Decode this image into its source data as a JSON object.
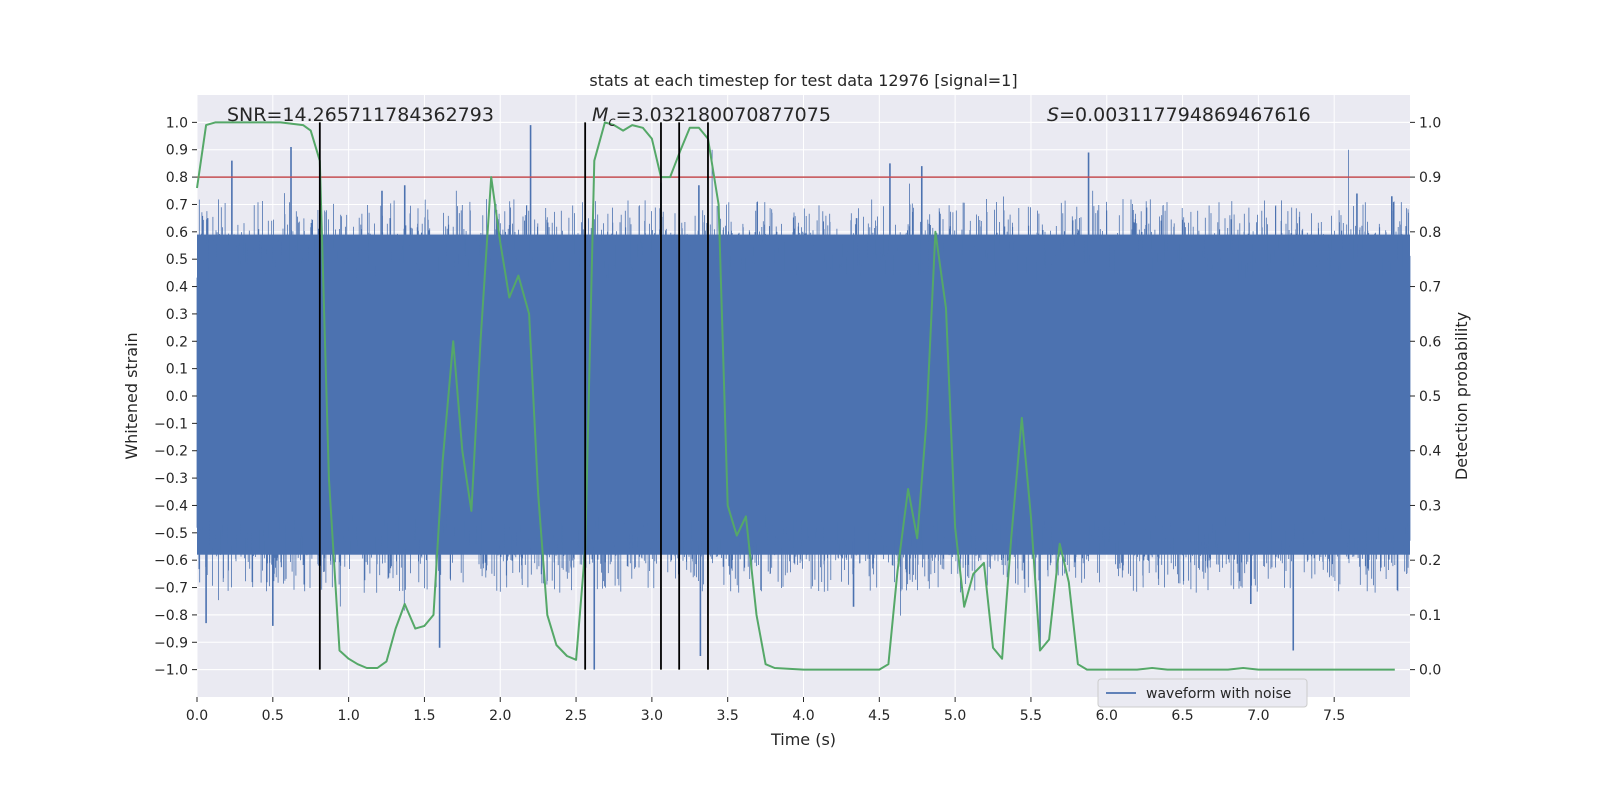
{
  "chart_data": {
    "type": "line",
    "title": "stats at each timestep for test data 12976 [signal=1]",
    "xlabel": "Time (s)",
    "ylabel_left": "Whitened strain",
    "ylabel_right": "Detection probability",
    "xlim": [
      0,
      8
    ],
    "ylim_left": [
      -1.1,
      1.1
    ],
    "ylim_right": [
      -0.05,
      1.05
    ],
    "x_ticks": [
      "0.0",
      "0.5",
      "1.0",
      "1.5",
      "2.0",
      "2.5",
      "3.0",
      "3.5",
      "4.0",
      "4.5",
      "5.0",
      "5.5",
      "6.0",
      "6.5",
      "7.0",
      "7.5"
    ],
    "x_tick_values": [
      0,
      0.5,
      1,
      1.5,
      2,
      2.5,
      3,
      3.5,
      4,
      4.5,
      5,
      5.5,
      6,
      6.5,
      7,
      7.5
    ],
    "y_left_ticks": [
      "1.0",
      "0.9",
      "0.8",
      "0.7",
      "0.6",
      "0.5",
      "0.4",
      "0.3",
      "0.2",
      "0.1",
      "0.0",
      "−0.1",
      "−0.2",
      "−0.3",
      "−0.4",
      "−0.5",
      "−0.6",
      "−0.7",
      "−0.8",
      "−0.9",
      "−1.0"
    ],
    "y_left_tick_values": [
      1,
      0.9,
      0.8,
      0.7,
      0.6,
      0.5,
      0.4,
      0.3,
      0.2,
      0.1,
      0,
      -0.1,
      -0.2,
      -0.3,
      -0.4,
      -0.5,
      -0.6,
      -0.7,
      -0.8,
      -0.9,
      -1
    ],
    "y_right_ticks": [
      "1.0",
      "0.9",
      "0.8",
      "0.7",
      "0.6",
      "0.5",
      "0.4",
      "0.3",
      "0.2",
      "0.1",
      "0.0"
    ],
    "y_right_tick_values": [
      1,
      0.9,
      0.8,
      0.7,
      0.6,
      0.5,
      0.4,
      0.3,
      0.2,
      0.1,
      0
    ],
    "annotations": {
      "snr": "SNR=14.265711784362793",
      "mc_symbol": "M",
      "mc_subscript": "c",
      "mc_value": "=3.032180070877075",
      "s_symbol": "S",
      "s_value": "=0.003117794869467616"
    },
    "legend": {
      "label": "waveform with noise",
      "location": "lower right"
    },
    "threshold": {
      "value": 0.9,
      "axis": "right",
      "color": "#c44e52"
    },
    "vertical_lines": [
      0.81,
      2.56,
      3.06,
      3.18,
      3.37
    ],
    "vertical_line_range_left": [
      -1,
      1
    ],
    "noise_series": {
      "name": "waveform with noise",
      "color": "#4c72b0",
      "envelope": [
        0.58,
        0.59
      ],
      "peaks": [
        {
          "x": 0.07,
          "y": 0.65
        },
        {
          "x": 0.23,
          "y": 0.86
        },
        {
          "x": 0.62,
          "y": 0.91
        },
        {
          "x": 1.22,
          "y": 0.75
        },
        {
          "x": 1.37,
          "y": 0.77
        },
        {
          "x": 2.2,
          "y": 0.99
        },
        {
          "x": 3.06,
          "y": 0.78
        },
        {
          "x": 3.31,
          "y": 0.77
        },
        {
          "x": 4.35,
          "y": 0.65
        },
        {
          "x": 4.57,
          "y": 0.85
        },
        {
          "x": 4.78,
          "y": 0.84
        },
        {
          "x": 5.88,
          "y": 0.89
        },
        {
          "x": 7.65,
          "y": 0.74
        },
        {
          "x": 7.88,
          "y": 0.73
        },
        {
          "x": 0.06,
          "y": -0.83
        },
        {
          "x": 0.5,
          "y": -0.84
        },
        {
          "x": 1.6,
          "y": -0.92
        },
        {
          "x": 2.62,
          "y": -1.0
        },
        {
          "x": 3.32,
          "y": -0.95
        },
        {
          "x": 4.33,
          "y": -0.77
        },
        {
          "x": 5.56,
          "y": -0.92
        },
        {
          "x": 7.23,
          "y": -0.93
        },
        {
          "x": 6.95,
          "y": -0.76
        }
      ]
    },
    "probability_series": {
      "name": "detection probability",
      "color": "#55a868",
      "x": [
        0.0,
        0.06,
        0.12,
        0.25,
        0.4,
        0.55,
        0.7,
        0.75,
        0.81,
        0.87,
        0.94,
        1.0,
        1.06,
        1.12,
        1.19,
        1.25,
        1.31,
        1.37,
        1.44,
        1.5,
        1.56,
        1.62,
        1.69,
        1.75,
        1.81,
        1.87,
        1.94,
        2.0,
        2.06,
        2.12,
        2.19,
        2.25,
        2.31,
        2.37,
        2.44,
        2.5,
        2.56,
        2.62,
        2.69,
        2.75,
        2.81,
        2.87,
        2.94,
        3.0,
        3.06,
        3.12,
        3.19,
        3.25,
        3.31,
        3.37,
        3.44,
        3.5,
        3.56,
        3.62,
        3.69,
        3.75,
        3.81,
        4.0,
        4.2,
        4.4,
        4.5,
        4.56,
        4.62,
        4.69,
        4.75,
        4.81,
        4.87,
        4.94,
        5.0,
        5.06,
        5.12,
        5.19,
        5.25,
        5.31,
        5.37,
        5.44,
        5.5,
        5.56,
        5.62,
        5.69,
        5.75,
        5.81,
        5.87,
        6.0,
        6.2,
        6.3,
        6.4,
        6.6,
        6.8,
        6.9,
        7.0,
        7.3,
        7.6,
        7.9
      ],
      "y": [
        0.88,
        0.995,
        1.0,
        1.0,
        1.0,
        1.0,
        0.995,
        0.985,
        0.93,
        0.35,
        0.035,
        0.02,
        0.01,
        0.003,
        0.003,
        0.015,
        0.075,
        0.12,
        0.075,
        0.08,
        0.1,
        0.38,
        0.6,
        0.4,
        0.29,
        0.6,
        0.9,
        0.78,
        0.68,
        0.72,
        0.65,
        0.32,
        0.1,
        0.045,
        0.025,
        0.018,
        0.22,
        0.93,
        1.0,
        0.995,
        0.985,
        0.995,
        0.99,
        0.97,
        0.9,
        0.9,
        0.95,
        0.99,
        0.99,
        0.97,
        0.85,
        0.3,
        0.245,
        0.28,
        0.1,
        0.01,
        0.003,
        0.0,
        0.0,
        0.0,
        0.0,
        0.01,
        0.18,
        0.33,
        0.24,
        0.45,
        0.8,
        0.66,
        0.26,
        0.115,
        0.175,
        0.195,
        0.04,
        0.02,
        0.24,
        0.46,
        0.28,
        0.035,
        0.055,
        0.23,
        0.16,
        0.01,
        0.0,
        0.0,
        0.0,
        0.003,
        0.0,
        0.0,
        0.0,
        0.003,
        0.0,
        0.0,
        0.0,
        0.0
      ]
    }
  }
}
